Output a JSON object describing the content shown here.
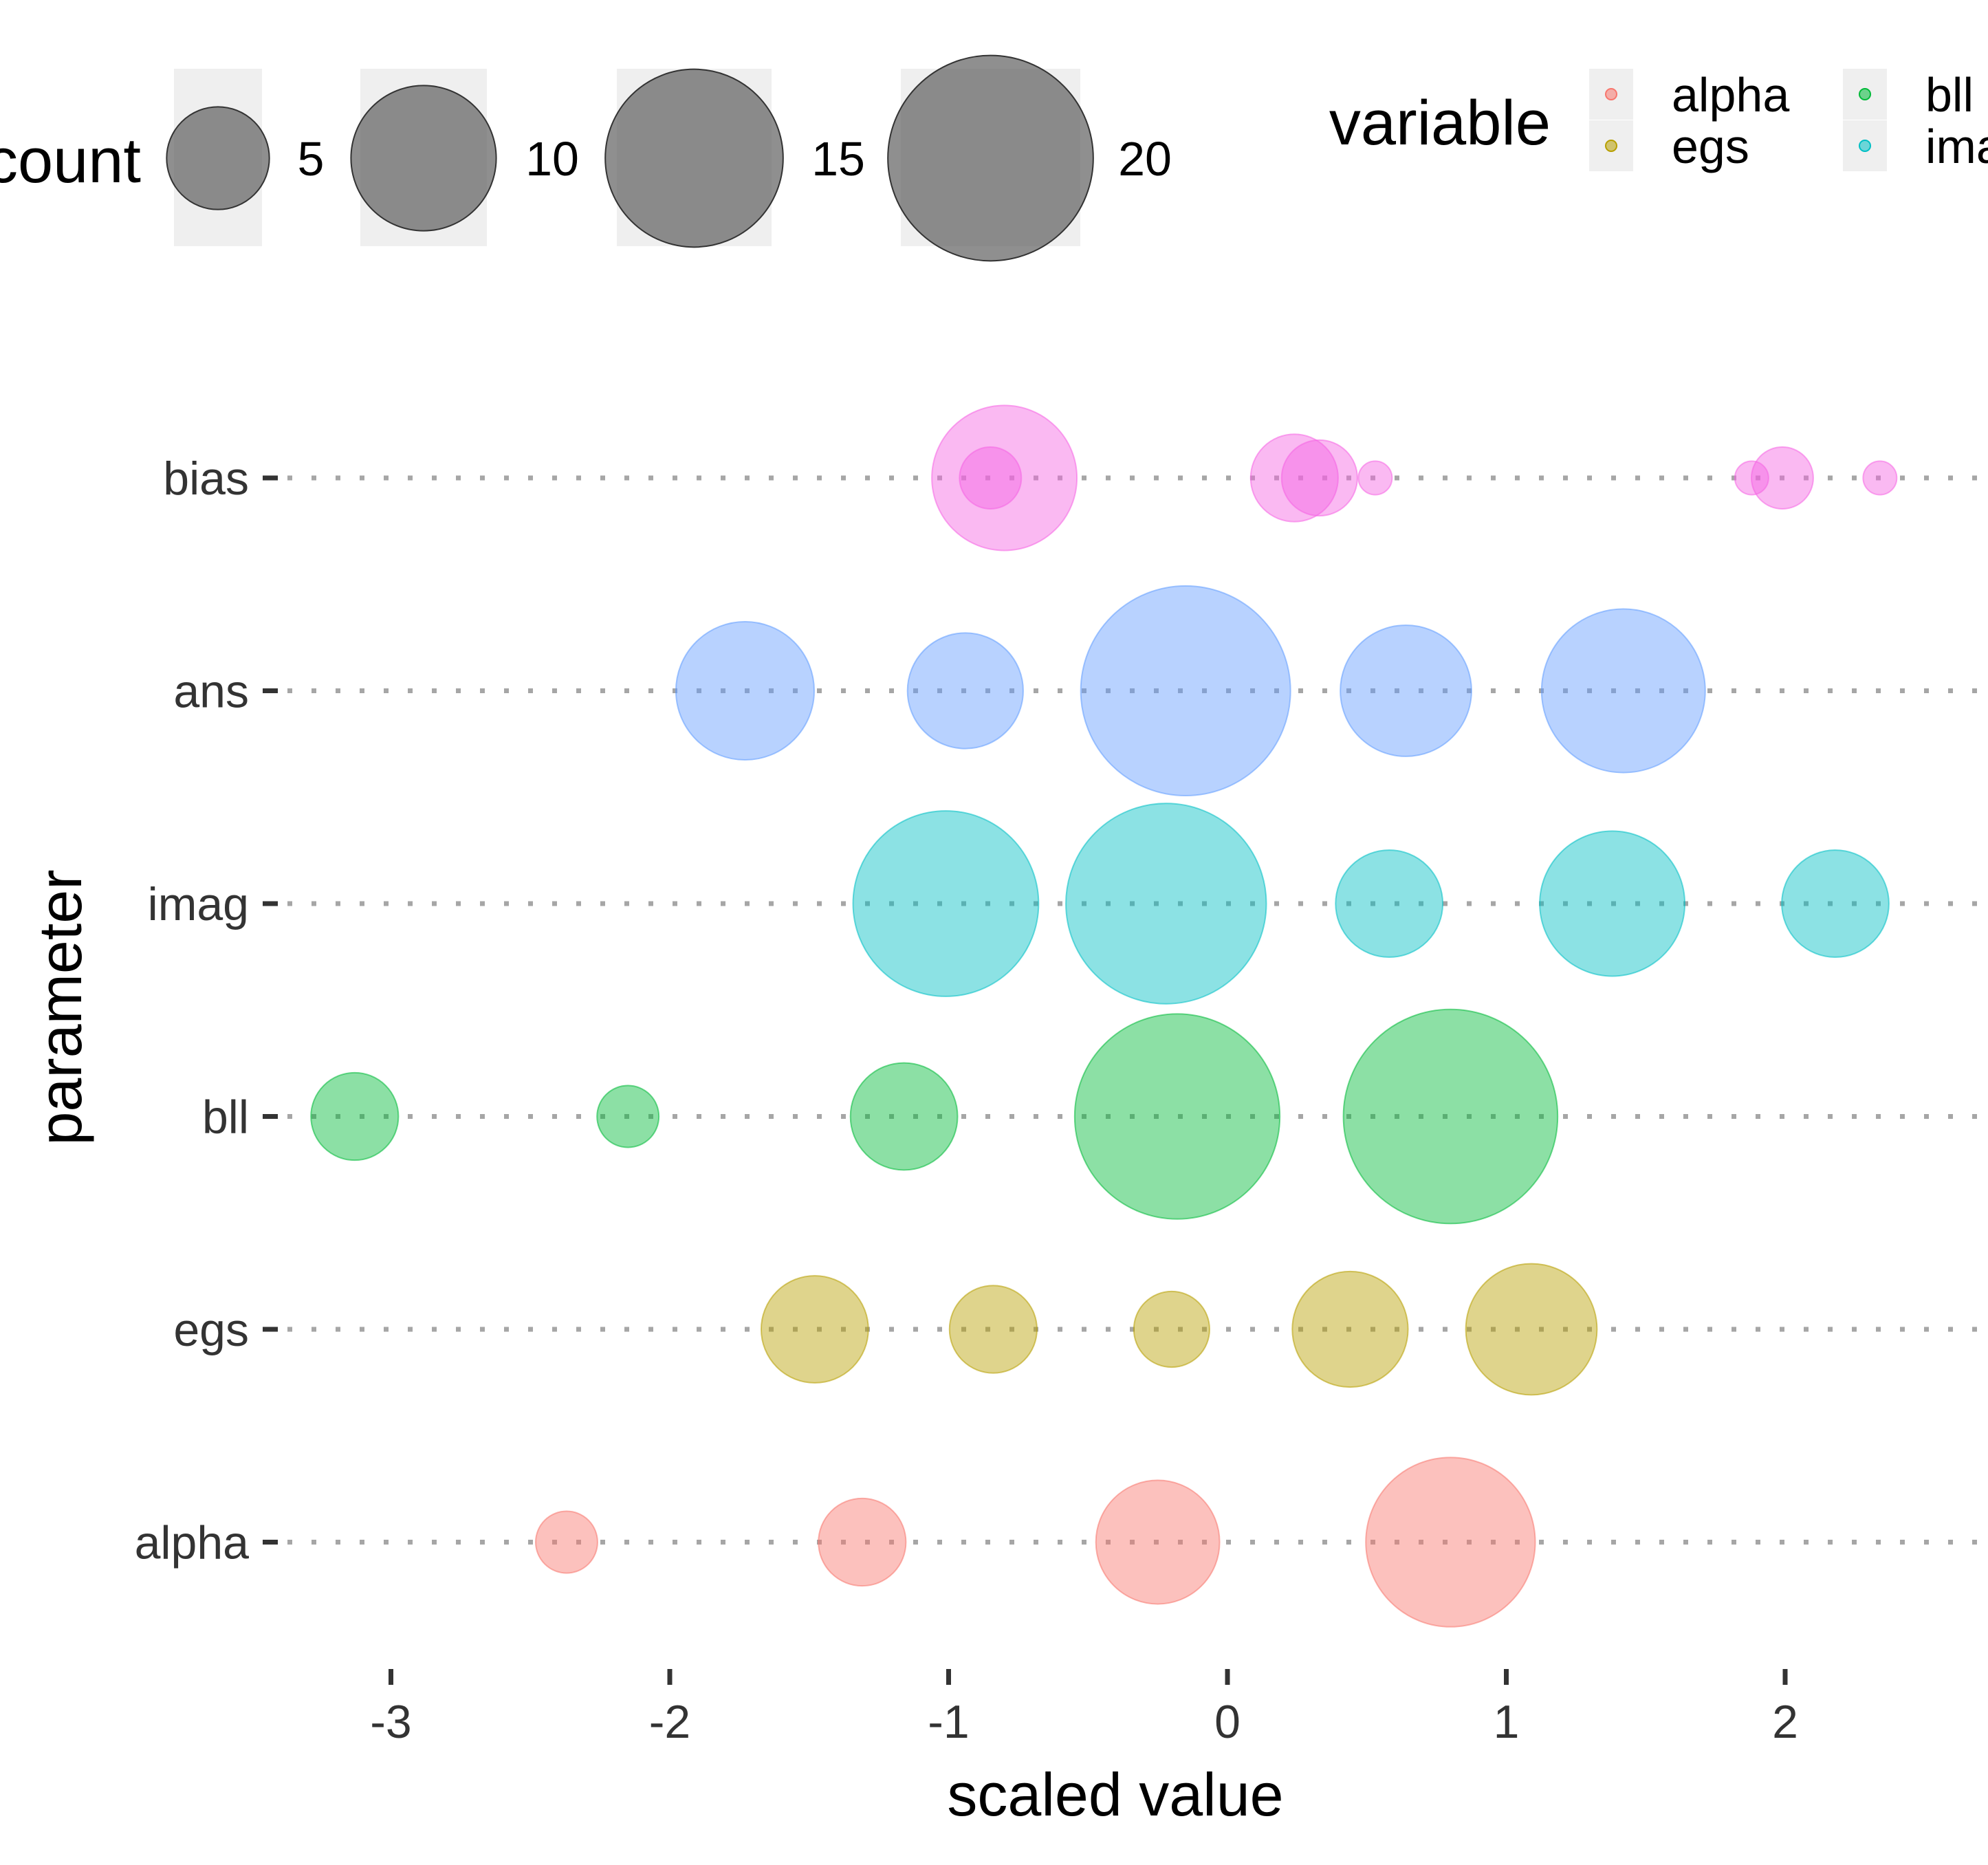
{
  "chart_data": {
    "type": "scatter",
    "title": "",
    "xlabel": "scaled value",
    "ylabel": "parameter",
    "xlim": [
      -3.45,
      2.6
    ],
    "x_ticks": [
      "-3",
      "-2",
      "-1",
      "0",
      "1",
      "2"
    ],
    "categories": [
      "alpha",
      "egs",
      "bll",
      "imag",
      "ans",
      "bias"
    ],
    "grid": "dotted horizontal guide lines at each parameter",
    "size_legend": {
      "title": "count",
      "entries": [
        {
          "label": "5",
          "value": 5
        },
        {
          "label": "10",
          "value": 10
        },
        {
          "label": "15",
          "value": 15
        },
        {
          "label": "20",
          "value": 20
        }
      ]
    },
    "color_legend": {
      "title": "variable",
      "placement": "top-right",
      "entries": [
        {
          "label": "alpha",
          "color": "#F8766D"
        },
        {
          "label": "egs",
          "color": "#B79F00"
        },
        {
          "label": "bll",
          "color": "#00BA38"
        },
        {
          "label": "ima",
          "color": "#00BFC4"
        }
      ]
    },
    "series": [
      {
        "name": "alpha",
        "color": "#F8766D",
        "points": [
          {
            "x": -2.37,
            "count": 2
          },
          {
            "x": -1.31,
            "count": 4
          },
          {
            "x": -0.25,
            "count": 8
          },
          {
            "x": 0.8,
            "count": 15
          }
        ]
      },
      {
        "name": "egs",
        "color": "#B79F00",
        "points": [
          {
            "x": -1.48,
            "count": 6
          },
          {
            "x": -0.84,
            "count": 4
          },
          {
            "x": -0.2,
            "count": 3
          },
          {
            "x": 0.44,
            "count": 7
          },
          {
            "x": 1.09,
            "count": 9
          }
        ]
      },
      {
        "name": "bll",
        "color": "#00BA38",
        "points": [
          {
            "x": -3.13,
            "count": 4
          },
          {
            "x": -2.15,
            "count": 2
          },
          {
            "x": -1.16,
            "count": 6
          },
          {
            "x": -0.18,
            "count": 22
          },
          {
            "x": 0.8,
            "count": 24
          }
        ]
      },
      {
        "name": "imag",
        "color": "#00BFC4",
        "points": [
          {
            "x": -1.01,
            "count": 18
          },
          {
            "x": -0.22,
            "count": 21
          },
          {
            "x": 0.58,
            "count": 6
          },
          {
            "x": 1.38,
            "count": 11
          },
          {
            "x": 2.18,
            "count": 6
          }
        ]
      },
      {
        "name": "ans",
        "color": "#619CFF",
        "points": [
          {
            "x": -1.73,
            "count": 10
          },
          {
            "x": -0.94,
            "count": 7
          },
          {
            "x": -0.15,
            "count": 23
          },
          {
            "x": 0.64,
            "count": 9
          },
          {
            "x": 1.42,
            "count": 14
          }
        ]
      },
      {
        "name": "bias",
        "color": "#F564E3",
        "points": [
          {
            "x": -0.8,
            "count": 11
          },
          {
            "x": -0.85,
            "count": 2
          },
          {
            "x": 0.24,
            "count": 4
          },
          {
            "x": 0.33,
            "count": 3
          },
          {
            "x": 0.53,
            "count": 0.5
          },
          {
            "x": 1.88,
            "count": 0.5
          },
          {
            "x": 1.99,
            "count": 2
          },
          {
            "x": 2.34,
            "count": 0.5
          }
        ]
      }
    ]
  }
}
